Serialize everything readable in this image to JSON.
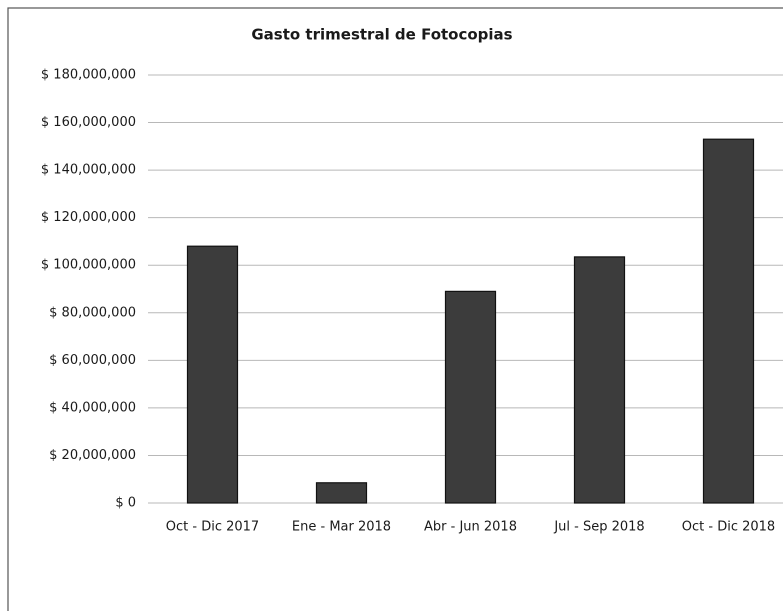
{
  "chart_data": {
    "type": "bar",
    "title": "Gasto trimestral de Fotocopias",
    "categories": [
      "Oct - Dic 2017",
      "Ene - Mar 2018",
      "Abr - Jun 2018",
      "Jul - Sep 2018",
      "Oct - Dic 2018"
    ],
    "values": [
      108000000,
      8500000,
      89000000,
      103500000,
      153000000
    ],
    "color": "#3c3c3c",
    "ylim": [
      0,
      180000000
    ],
    "yticks": [
      {
        "value": 0,
        "label": "$ 0"
      },
      {
        "value": 20000000,
        "label": "$ 20,000,000"
      },
      {
        "value": 40000000,
        "label": "$ 40,000,000"
      },
      {
        "value": 60000000,
        "label": "$ 60,000,000"
      },
      {
        "value": 80000000,
        "label": "$ 80,000,000"
      },
      {
        "value": 100000000,
        "label": "$ 100,000,000"
      },
      {
        "value": 120000000,
        "label": "$ 120,000,000"
      },
      {
        "value": 140000000,
        "label": "$ 140,000,000"
      },
      {
        "value": 160000000,
        "label": "$ 160,000,000"
      },
      {
        "value": 180000000,
        "label": "$ 180,000,000"
      }
    ],
    "grid": true
  }
}
